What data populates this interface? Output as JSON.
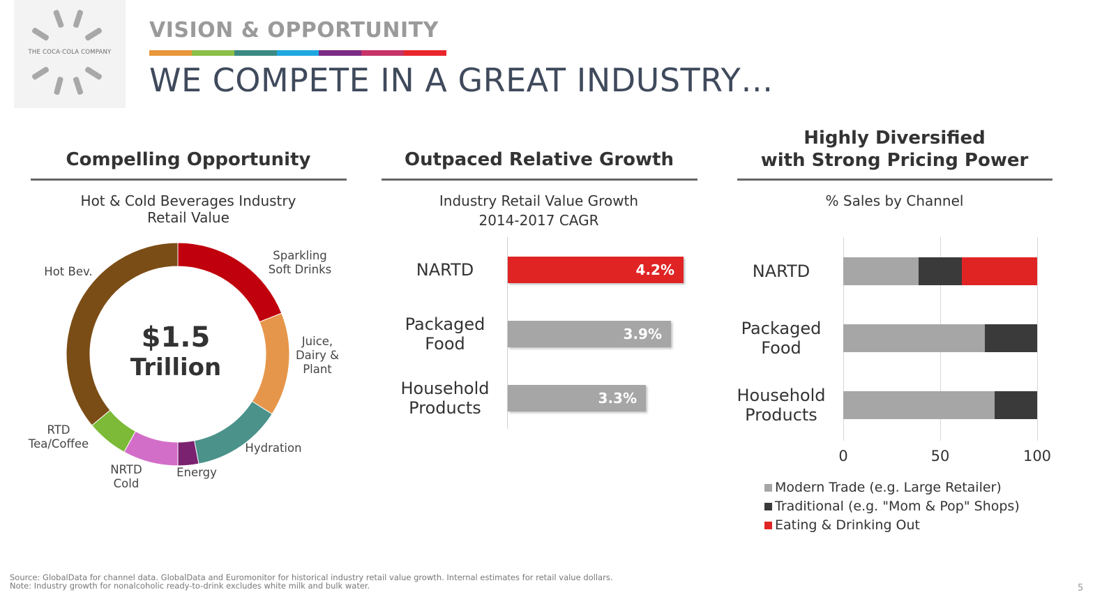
{
  "logo": {
    "text": "THE COCA·COLA COMPANY"
  },
  "header": {
    "kicker": "VISION & OPPORTUNITY",
    "title": "WE COMPETE IN A GREAT INDUSTRY…",
    "stripe_colors": [
      "#e8973a",
      "#8cbf47",
      "#3d8a84",
      "#1fa8e0",
      "#7b2c84",
      "#c63468",
      "#e8262b"
    ]
  },
  "columns": {
    "left": {
      "heading": "Compelling Opportunity",
      "subheading": "Hot & Cold Beverages Industry Retail Value"
    },
    "middle": {
      "heading": "Outpaced Relative Growth",
      "subheading_line1": "Industry Retail Value Growth",
      "subheading_line2": "2014-2017 CAGR"
    },
    "right": {
      "heading_line1": "Highly Diversified",
      "heading_line2": "with Strong Pricing Power",
      "subheading": "% Sales by Channel"
    }
  },
  "chart_data": [
    {
      "type": "pie",
      "variant": "donut",
      "title": "Hot & Cold Beverages Industry Retail Value",
      "center_value": "$1.5",
      "center_unit": "Trillion",
      "slices": [
        {
          "label": "Sparkling Soft Drinks",
          "lines": [
            "Sparkling",
            "Soft Drinks"
          ],
          "value": 19,
          "color": "#c0000c"
        },
        {
          "label": "Juice, Dairy & Plant",
          "lines": [
            "Juice,",
            "Dairy &",
            "Plant"
          ],
          "value": 15,
          "color": "#e6964a"
        },
        {
          "label": "Hydration",
          "lines": [
            "Hydration"
          ],
          "value": 13,
          "color": "#4a928a"
        },
        {
          "label": "Energy",
          "lines": [
            "Energy"
          ],
          "value": 3,
          "color": "#7a2270"
        },
        {
          "label": "NRTD Cold",
          "lines": [
            "NRTD",
            "Cold"
          ],
          "value": 8,
          "color": "#d36ec8"
        },
        {
          "label": "RTD Tea/Coffee",
          "lines": [
            "RTD",
            "Tea/Coffee"
          ],
          "value": 6,
          "color": "#7cba37"
        },
        {
          "label": "Hot Bev.",
          "lines": [
            "Hot Bev."
          ],
          "value": 36,
          "color": "#7b4d16"
        }
      ]
    },
    {
      "type": "bar",
      "orientation": "horizontal",
      "title": "Industry Retail Value Growth 2014-2017 CAGR",
      "categories": [
        "NARTD",
        "Packaged Food",
        "Household Products"
      ],
      "category_lines": [
        [
          "NARTD"
        ],
        [
          "Packaged",
          "Food"
        ],
        [
          "Household",
          "Products"
        ]
      ],
      "values": [
        4.2,
        3.9,
        3.3
      ],
      "value_labels": [
        "4.2%",
        "3.9%",
        "3.3%"
      ],
      "colors": [
        "#e02424",
        "#a6a6a6",
        "#a6a6a6"
      ],
      "xlim": [
        0,
        4.5
      ]
    },
    {
      "type": "bar",
      "orientation": "horizontal",
      "stacked": true,
      "title": "% Sales by Channel",
      "categories": [
        "NARTD",
        "Packaged Food",
        "Household Products"
      ],
      "category_lines": [
        [
          "NARTD"
        ],
        [
          "Packaged",
          "Food"
        ],
        [
          "Household",
          "Products"
        ]
      ],
      "series": [
        {
          "name": "Modern Trade (e.g. Large Retailer)",
          "values": [
            39,
            73,
            78
          ],
          "color": "#a6a6a6"
        },
        {
          "name": "Traditional (e.g. \"Mom & Pop\" Shops)",
          "values": [
            22,
            27,
            22
          ],
          "color": "#3a3a3a"
        },
        {
          "name": "Eating & Drinking Out",
          "values": [
            39,
            0,
            0
          ],
          "color": "#e02424"
        }
      ],
      "xlim": [
        0,
        100
      ],
      "xticks": [
        0,
        50,
        100
      ],
      "xtick_labels": [
        "0",
        "50",
        "100"
      ],
      "grid": true,
      "legend": "bottom"
    }
  ],
  "footer": {
    "line1": "Source: GlobalData for channel data.  GlobalData and Euromonitor for historical industry retail value growth. Internal estimates for retail value dollars.",
    "line2": "Note: Industry growth for nonalcoholic ready-to-drink excludes white milk and bulk water."
  },
  "page_number": "5"
}
